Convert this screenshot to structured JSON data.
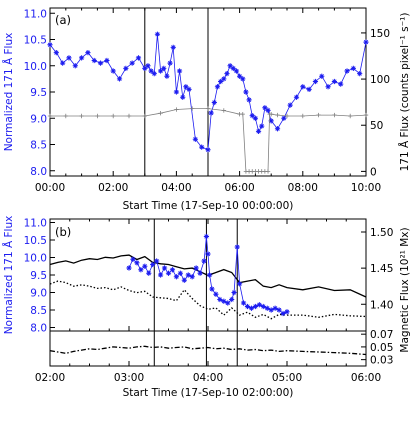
{
  "colors": {
    "axes": "#000000",
    "blue": "#1c1cf0",
    "gray": "#808080",
    "background": "#ffffff"
  },
  "chart_data": [
    {
      "type": "line",
      "panel_label": "(a)",
      "xlabel": "Start Time (17-Sep-10 00:00:00)",
      "ylabel_left": "Normalized 171 Å Flux",
      "ylabel_right": "171 Å Flux (counts pixel⁻¹ s⁻¹)",
      "xlim": [
        0,
        10
      ],
      "ylim": [
        7.9,
        11.1
      ],
      "ylim_right": [
        -5,
        177
      ],
      "x_tick_labels": [
        "00:00",
        "02:00",
        "04:00",
        "06:00",
        "08:00",
        "10:00"
      ],
      "y_tick_labels": [
        "8.0",
        "8.5",
        "9.0",
        "9.5",
        "10.0",
        "10.5",
        "11.0"
      ],
      "y_right_tick_labels": [
        "0",
        "50",
        "100",
        "150"
      ],
      "vertical_lines_hours": [
        3.0,
        5.0
      ],
      "series": [
        {
          "axis": "left",
          "color": "#1c1cf0",
          "marker": "star",
          "x": [
            0.0,
            0.2,
            0.4,
            0.6,
            0.8,
            1.0,
            1.2,
            1.4,
            1.6,
            1.8,
            2.0,
            2.2,
            2.4,
            2.6,
            2.8,
            3.0,
            3.1,
            3.2,
            3.3,
            3.4,
            3.5,
            3.6,
            3.7,
            3.8,
            3.9,
            4.0,
            4.1,
            4.2,
            4.3,
            4.4,
            4.6,
            4.8,
            5.0,
            5.1,
            5.2,
            5.3,
            5.4,
            5.5,
            5.6,
            5.7,
            5.8,
            5.9,
            6.0,
            6.1,
            6.2,
            6.3,
            6.4,
            6.5,
            6.6,
            6.7,
            6.8,
            6.9,
            7.0,
            7.2,
            7.4,
            7.6,
            7.8,
            8.0,
            8.2,
            8.4,
            8.6,
            8.8,
            9.0,
            9.2,
            9.4,
            9.6,
            9.8,
            10.0
          ],
          "values": [
            10.4,
            10.25,
            10.05,
            10.15,
            10.0,
            10.15,
            10.25,
            10.1,
            10.05,
            10.1,
            9.9,
            9.75,
            9.95,
            10.05,
            10.15,
            9.95,
            10.0,
            9.9,
            9.85,
            10.6,
            9.9,
            9.95,
            9.8,
            10.05,
            10.35,
            9.5,
            9.9,
            9.4,
            9.6,
            9.55,
            8.6,
            8.45,
            8.4,
            9.1,
            9.3,
            9.6,
            9.7,
            9.75,
            9.85,
            10.0,
            9.95,
            9.9,
            9.8,
            9.75,
            9.5,
            9.35,
            9.05,
            9.0,
            8.75,
            8.85,
            9.2,
            9.15,
            8.95,
            8.8,
            9.0,
            9.25,
            9.4,
            9.6,
            9.55,
            9.7,
            9.8,
            9.6,
            9.7,
            9.65,
            9.9,
            9.95,
            9.85,
            10.45
          ]
        },
        {
          "axis": "right",
          "color": "#808080",
          "marker": "plus",
          "x": [
            0,
            0.5,
            1,
            1.5,
            2,
            2.5,
            3,
            3.5,
            4,
            4.5,
            5,
            5.5,
            6,
            6.1,
            6.2,
            6.3,
            6.4,
            6.5,
            6.6,
            6.7,
            6.8,
            6.9,
            6.95,
            7.0,
            7.2,
            7.5,
            8,
            8.5,
            9,
            9.5,
            10
          ],
          "values": [
            60,
            60,
            60,
            60,
            60,
            60,
            60,
            63,
            67,
            68,
            68,
            66,
            62,
            62,
            0,
            0,
            0,
            0,
            0,
            0,
            0,
            0,
            62,
            62,
            61,
            60,
            60,
            61,
            61,
            60,
            61
          ]
        }
      ]
    },
    {
      "type": "line",
      "panel_label": "(b)",
      "xlabel": "Start Time (17-Sep-10 02:00:00)",
      "ylabel_left": "Normalized 171 Å Flux",
      "ylabel_right": "Magnetic Flux (10²¹ Mx)",
      "xlim": [
        2,
        6
      ],
      "ylim": [
        7.9,
        11.1
      ],
      "ylim_right": [
        1.363,
        1.518
      ],
      "x_tick_labels": [
        "02:00",
        "03:00",
        "04:00",
        "05:00",
        "06:00"
      ],
      "y_tick_labels": [
        "8.0",
        "8.5",
        "9.0",
        "9.5",
        "10.0",
        "10.5",
        "11.0"
      ],
      "y_right_tick_labels": [
        "1.40",
        "1.45",
        "1.50"
      ],
      "vertical_lines_hours": [
        3.32,
        3.98,
        4.37
      ],
      "series": [
        {
          "axis": "right",
          "color": "#000000",
          "style": "solid",
          "x": [
            2.0,
            2.1,
            2.2,
            2.3,
            2.4,
            2.5,
            2.6,
            2.7,
            2.8,
            2.9,
            3.0,
            3.1,
            3.2,
            3.3,
            3.4,
            3.5,
            3.6,
            3.7,
            3.8,
            3.9,
            4.0,
            4.1,
            4.2,
            4.3,
            4.4,
            4.5,
            4.6,
            4.7,
            4.8,
            4.9,
            5.0,
            5.2,
            5.4,
            5.6,
            5.8,
            6.0
          ],
          "values": [
            1.455,
            1.458,
            1.46,
            1.457,
            1.461,
            1.463,
            1.462,
            1.465,
            1.464,
            1.467,
            1.468,
            1.462,
            1.466,
            1.458,
            1.456,
            1.455,
            1.452,
            1.449,
            1.45,
            1.445,
            1.44,
            1.444,
            1.448,
            1.444,
            1.43,
            1.432,
            1.434,
            1.425,
            1.423,
            1.427,
            1.423,
            1.42,
            1.424,
            1.419,
            1.42,
            1.41
          ]
        },
        {
          "axis": "right",
          "color": "#000000",
          "style": "dotted",
          "x": [
            2.0,
            2.1,
            2.2,
            2.3,
            2.4,
            2.5,
            2.6,
            2.7,
            2.8,
            2.9,
            3.0,
            3.1,
            3.2,
            3.3,
            3.4,
            3.5,
            3.6,
            3.7,
            3.8,
            3.9,
            4.0,
            4.1,
            4.2,
            4.3,
            4.4,
            4.5,
            4.6,
            4.7,
            4.8,
            4.9,
            5.0,
            5.2,
            5.4,
            5.6,
            5.8,
            6.0
          ],
          "values": [
            1.428,
            1.432,
            1.43,
            1.425,
            1.427,
            1.425,
            1.422,
            1.423,
            1.42,
            1.424,
            1.419,
            1.416,
            1.418,
            1.41,
            1.409,
            1.408,
            1.405,
            1.42,
            1.408,
            1.398,
            1.393,
            1.395,
            1.385,
            1.395,
            1.385,
            1.389,
            1.382,
            1.386,
            1.38,
            1.386,
            1.385,
            1.385,
            1.382,
            1.386,
            1.384,
            1.383
          ]
        },
        {
          "axis": "left",
          "color": "#1c1cf0",
          "marker": "star",
          "x": [
            3.0,
            3.05,
            3.1,
            3.15,
            3.2,
            3.25,
            3.3,
            3.35,
            3.4,
            3.45,
            3.5,
            3.55,
            3.6,
            3.65,
            3.7,
            3.75,
            3.8,
            3.85,
            3.9,
            3.95,
            3.98,
            4.0,
            4.02,
            4.05,
            4.1,
            4.15,
            4.2,
            4.25,
            4.3,
            4.33,
            4.37,
            4.4,
            4.45,
            4.5,
            4.55,
            4.6,
            4.65,
            4.7,
            4.75,
            4.8,
            4.85,
            4.9,
            4.95,
            5.0
          ],
          "values": [
            9.7,
            9.95,
            9.85,
            9.65,
            9.75,
            9.55,
            9.8,
            9.9,
            9.5,
            9.7,
            9.55,
            9.65,
            9.45,
            9.55,
            9.35,
            9.5,
            9.45,
            9.7,
            9.55,
            9.9,
            10.6,
            10.1,
            9.5,
            9.1,
            8.95,
            8.8,
            8.75,
            8.7,
            8.8,
            9.0,
            10.3,
            9.25,
            8.7,
            8.6,
            8.55,
            8.6,
            8.65,
            8.6,
            8.55,
            8.5,
            8.55,
            8.5,
            8.4,
            8.45
          ]
        }
      ]
    },
    {
      "type": "line",
      "xlim": [
        2,
        6
      ],
      "ylim": [
        0.02,
        0.075
      ],
      "y_right_tick_labels": [
        "0.03",
        "0.05",
        "0.07"
      ],
      "vertical_lines_hours": [
        3.32,
        3.98,
        4.37
      ],
      "series": [
        {
          "axis": "right",
          "color": "#000000",
          "style": "dashdot",
          "x": [
            2.0,
            2.1,
            2.2,
            2.3,
            2.4,
            2.5,
            2.6,
            2.7,
            2.8,
            2.9,
            3.0,
            3.1,
            3.2,
            3.3,
            3.4,
            3.5,
            3.6,
            3.7,
            3.8,
            3.9,
            4.0,
            4.1,
            4.2,
            4.3,
            4.4,
            4.5,
            4.6,
            4.7,
            4.8,
            4.9,
            5.0,
            5.2,
            5.4,
            5.6,
            5.8,
            6.0
          ],
          "values": [
            0.044,
            0.042,
            0.04,
            0.043,
            0.045,
            0.047,
            0.046,
            0.048,
            0.05,
            0.049,
            0.048,
            0.05,
            0.051,
            0.049,
            0.05,
            0.048,
            0.049,
            0.05,
            0.047,
            0.048,
            0.049,
            0.047,
            0.048,
            0.046,
            0.047,
            0.045,
            0.046,
            0.044,
            0.045,
            0.043,
            0.044,
            0.043,
            0.042,
            0.041,
            0.04,
            0.038
          ]
        }
      ]
    }
  ]
}
